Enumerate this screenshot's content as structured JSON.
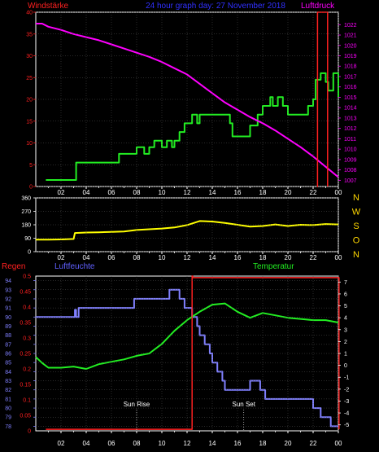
{
  "title": "24 hour graph day: 27 November 2018",
  "colors": {
    "background": "#000000",
    "frame": "#ffffff",
    "grid": "#555555",
    "red": "#ff2020",
    "green": "#22ee22",
    "magenta": "#ff00ff",
    "yellow": "#ffff00",
    "blue": "#8080ff",
    "label_blue": "#4040ff",
    "dir_yellow": "#ffd700",
    "annotation": "#ffffff"
  },
  "chart_data": [
    {
      "type": "line",
      "name": "wind-pressure",
      "labels": {
        "left": "Windstärke",
        "right": "Luftdruck"
      },
      "x_ticks": [
        "02",
        "04",
        "06",
        "08",
        "10",
        "12",
        "14",
        "16",
        "18",
        "20",
        "22",
        "00"
      ],
      "y_left": {
        "min": 0,
        "max": 40,
        "ticks": [
          0,
          5,
          10,
          15,
          20,
          25,
          30,
          35,
          40
        ]
      },
      "y_right": {
        "min": 1006.4,
        "max": 1023.2,
        "ticks": [
          1007,
          1008,
          1009,
          1010,
          1011,
          1012,
          1013,
          1014,
          1015,
          1016,
          1017,
          1018,
          1019,
          1020,
          1021,
          1022
        ]
      },
      "series": [
        {
          "axis": "left",
          "color": "green",
          "step": true,
          "x": [
            0.8,
            3,
            3.2,
            6,
            6.6,
            8,
            8.6,
            9,
            9.4,
            10,
            10.4,
            10.8,
            11,
            11.4,
            11.8,
            12.4,
            12.8,
            13,
            14,
            14,
            15.4,
            15.6,
            16.4,
            17,
            17.6,
            18,
            18.6,
            18.8,
            19.2,
            19.6,
            20,
            20.6,
            21,
            21.6,
            22,
            22.2,
            22.6,
            23,
            23.2,
            23.6,
            23.8,
            24
          ],
          "y": [
            1.5,
            1.5,
            5.5,
            5.5,
            7.5,
            9,
            7.5,
            9,
            10.5,
            9,
            10.5,
            9,
            10.5,
            12.5,
            14.5,
            16.5,
            14.5,
            16.5,
            16.5,
            16.5,
            14.5,
            11.5,
            11.5,
            14,
            16.5,
            18.5,
            20.5,
            18.5,
            20.5,
            18.5,
            16.5,
            16.5,
            16.5,
            18.5,
            20,
            24.5,
            26,
            24,
            22,
            26,
            26,
            20.5
          ]
        },
        {
          "axis": "right",
          "color": "magenta",
          "step": false,
          "x": [
            0,
            0.5,
            1,
            2,
            3,
            4,
            5,
            6,
            7,
            8,
            9,
            10,
            11,
            12,
            13,
            14,
            15,
            16,
            17,
            18,
            19,
            20,
            21,
            22,
            23,
            24
          ],
          "y": [
            1022.1,
            1022.1,
            1021.8,
            1021.5,
            1021.1,
            1020.8,
            1020.5,
            1020.1,
            1019.7,
            1019.3,
            1018.9,
            1018.4,
            1017.8,
            1017.2,
            1016.3,
            1015.4,
            1014.5,
            1013.8,
            1013.1,
            1012.5,
            1011.8,
            1011.0,
            1010.2,
            1009.3,
            1008.3,
            1007.3
          ]
        },
        {
          "axis": "left",
          "color": "red",
          "step": true,
          "x": [
            22.3,
            22.35,
            23.1,
            23.15
          ],
          "y": [
            0,
            40,
            40,
            0
          ]
        }
      ]
    },
    {
      "type": "line",
      "name": "wind-direction",
      "labels": {
        "compass": [
          "N",
          "W",
          "S",
          "O",
          "N"
        ]
      },
      "x_ticks": [
        "02",
        "04",
        "06",
        "08",
        "10",
        "12",
        "14",
        "16",
        "18",
        "20",
        "22",
        "00"
      ],
      "y_left": {
        "min": 0,
        "max": 360,
        "ticks": [
          0,
          90,
          180,
          270,
          360
        ]
      },
      "series": [
        {
          "axis": "left",
          "color": "yellow",
          "step": false,
          "x": [
            0,
            1,
            2,
            3,
            3.1,
            4,
            5,
            6,
            7,
            8,
            9,
            10,
            11,
            12,
            13,
            14,
            15,
            16,
            17,
            18,
            19,
            20,
            21,
            22,
            23,
            24
          ],
          "y": [
            80,
            80,
            82,
            85,
            125,
            128,
            130,
            132,
            135,
            145,
            150,
            155,
            162,
            178,
            205,
            202,
            192,
            180,
            168,
            172,
            182,
            172,
            180,
            178,
            185,
            182
          ]
        }
      ]
    },
    {
      "type": "line",
      "name": "rain-humidity-temperature",
      "labels": {
        "left_outer": "Regen",
        "left_inner": "Luftfeuchte",
        "right": "Temperatur"
      },
      "x_ticks": [
        "02",
        "04",
        "06",
        "08",
        "10",
        "12",
        "14",
        "16",
        "18",
        "20",
        "22",
        "00"
      ],
      "y_left_outer": {
        "min": 0,
        "max": 0.5,
        "ticks": [
          0,
          0.05,
          0.1,
          0.15,
          0.2,
          0.25,
          0.3,
          0.35,
          0.4,
          0.45,
          0.5
        ]
      },
      "y_left_inner": {
        "min": 77.5,
        "max": 94.5,
        "ticks": [
          78,
          79,
          80,
          81,
          82,
          83,
          84,
          85,
          86,
          87,
          88,
          89,
          90,
          91,
          92,
          93,
          94
        ]
      },
      "y_right": {
        "min": -5.5,
        "max": 7.5,
        "ticks": [
          -5,
          -4,
          -3,
          -2,
          -1,
          0,
          1,
          2,
          3,
          4,
          5,
          6,
          7
        ]
      },
      "annotations": [
        {
          "label": "Sun Rise",
          "x": 8.0
        },
        {
          "label": "Sun Set",
          "x": 16.5
        }
      ],
      "series": [
        {
          "axis": "left_inner",
          "color": "blue",
          "step": true,
          "x": [
            0,
            3,
            3.1,
            3.2,
            3.4,
            7,
            7.8,
            10,
            10.6,
            11,
            11.4,
            11.8,
            12.4,
            12.8,
            13,
            13.4,
            13.8,
            14,
            14.4,
            14.8,
            15,
            15.6,
            16,
            16.4,
            17,
            17.8,
            18.2,
            19,
            20,
            21,
            21.8,
            22,
            22.6,
            23,
            23.4,
            23.6,
            23.8,
            24
          ],
          "y": [
            90,
            90,
            90.8,
            90,
            91,
            91,
            92,
            92,
            93,
            93,
            92,
            91,
            90,
            89,
            88,
            87,
            86,
            85,
            84,
            83,
            82,
            82,
            82,
            82,
            83,
            82,
            81,
            81,
            81,
            81,
            81,
            80,
            79,
            79,
            78,
            78,
            78,
            78
          ]
        },
        {
          "axis": "right",
          "color": "green",
          "step": false,
          "x": [
            0,
            0.5,
            1,
            2,
            3,
            4,
            5,
            6,
            7,
            8,
            9,
            10,
            11,
            12,
            13,
            14,
            15,
            16,
            17,
            18,
            19,
            20,
            21,
            22,
            23,
            24
          ],
          "y": [
            0.7,
            0.2,
            -0.2,
            -0.2,
            -0.1,
            -0.3,
            0.1,
            0.3,
            0.5,
            0.8,
            1.0,
            1.8,
            2.9,
            3.8,
            4.5,
            5.1,
            5.2,
            4.5,
            4.0,
            4.4,
            4.2,
            4.0,
            3.9,
            3.8,
            3.8,
            3.6
          ]
        },
        {
          "axis": "left_outer",
          "color": "red",
          "step": true,
          "x": [
            0.8,
            11.2,
            12.4,
            12.45,
            24,
            24.05
          ],
          "y": [
            0.005,
            0.005,
            0.5,
            0.495,
            0.495,
            0.005
          ]
        }
      ]
    }
  ],
  "direction_labels": [
    "N",
    "W",
    "S",
    "O",
    "N"
  ]
}
